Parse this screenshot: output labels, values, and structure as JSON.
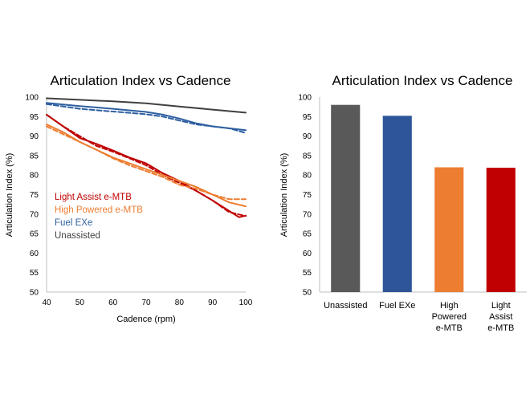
{
  "chart_data": [
    {
      "type": "line",
      "title": "Articulation Index vs Cadence",
      "xlabel": "Cadence (rpm)",
      "ylabel": "Articulation Index (%)",
      "xlim": [
        40,
        100
      ],
      "ylim": [
        50,
        100
      ],
      "xticks": [
        "40",
        "50",
        "60",
        "70",
        "80",
        "90",
        "100"
      ],
      "yticks": [
        "50",
        "55",
        "60",
        "65",
        "70",
        "75",
        "80",
        "85",
        "90",
        "95",
        "100"
      ],
      "grid": false,
      "legend_position": "middle-left",
      "series": [
        {
          "name": "Light Assist e-MTB",
          "color": "#c00000",
          "style": "solid",
          "x": [
            40,
            45,
            50,
            55,
            60,
            65,
            70,
            75,
            80,
            85,
            90,
            95,
            98,
            100
          ],
          "y": [
            95.5,
            92.5,
            89.5,
            88,
            86.3,
            84.5,
            83,
            80.5,
            78.5,
            76,
            73.5,
            70.8,
            69.2,
            69.6
          ]
        },
        {
          "name": "Light Assist e-MTB (dashed)",
          "color": "#c00000",
          "style": "dashed",
          "x": [
            40,
            45,
            50,
            55,
            60,
            65,
            70,
            75,
            80,
            85,
            90,
            95,
            100
          ],
          "y": [
            95.5,
            92.5,
            90,
            87.5,
            86,
            84.3,
            82.5,
            80,
            78,
            76,
            73.5,
            70.5,
            69.5
          ]
        },
        {
          "name": "High Powered e-MTB",
          "color": "#ed7d31",
          "style": "solid",
          "x": [
            40,
            45,
            50,
            55,
            60,
            65,
            70,
            75,
            80,
            85,
            90,
            95,
            100
          ],
          "y": [
            93,
            91,
            88.5,
            86.5,
            84.5,
            83,
            81.5,
            80,
            78.5,
            77,
            75,
            73,
            72
          ]
        },
        {
          "name": "High Powered e-MTB (dashed)",
          "color": "#ed7d31",
          "style": "dashed",
          "x": [
            40,
            45,
            50,
            55,
            60,
            65,
            70,
            75,
            80,
            85,
            90,
            95,
            100
          ],
          "y": [
            92.5,
            90.5,
            88.5,
            86.5,
            84.3,
            82.5,
            81,
            79.5,
            77.5,
            76.5,
            75,
            73.8,
            73.8
          ]
        },
        {
          "name": "Fuel EXe",
          "color": "#2e5fa1",
          "style": "solid",
          "x": [
            40,
            50,
            60,
            70,
            75,
            80,
            85,
            90,
            95,
            100
          ],
          "y": [
            98.5,
            97.7,
            97,
            96.2,
            95.5,
            94.5,
            93.3,
            92.5,
            92,
            91.5
          ]
        },
        {
          "name": "Fuel EXe (dashed)",
          "color": "#2e5fa1",
          "style": "dashed",
          "x": [
            40,
            50,
            60,
            70,
            75,
            80,
            85,
            90,
            95,
            100
          ],
          "y": [
            98.2,
            97,
            96.3,
            95.6,
            95,
            94,
            93,
            92.5,
            92,
            90.8
          ]
        },
        {
          "name": "Unassisted",
          "color": "#404040",
          "style": "solid",
          "x": [
            40,
            50,
            60,
            70,
            80,
            90,
            100
          ],
          "y": [
            99.7,
            99.3,
            98.9,
            98.4,
            97.6,
            96.8,
            96
          ]
        }
      ],
      "legend": [
        {
          "label": "Light Assist e-MTB",
          "color": "#c00000"
        },
        {
          "label": "High Powered e-MTB",
          "color": "#ed7d31"
        },
        {
          "label": "Fuel EXe",
          "color": "#2e5fa1"
        },
        {
          "label": "Unassisted",
          "color": "#404040"
        }
      ]
    },
    {
      "type": "bar",
      "title": "Articulation Index vs Cadence",
      "xlabel": "",
      "ylabel": "Articulation Index (%)",
      "ylim": [
        50,
        100
      ],
      "yticks": [
        "50",
        "55",
        "60",
        "65",
        "70",
        "75",
        "80",
        "85",
        "90",
        "95",
        "100"
      ],
      "grid": false,
      "categories": [
        [
          "Unassisted"
        ],
        [
          "Fuel EXe"
        ],
        [
          "High",
          "Powered",
          "e-MTB"
        ],
        [
          "Light",
          "Assist",
          "e-MTB"
        ]
      ],
      "values": [
        98,
        95.2,
        82,
        81.9
      ],
      "colors": [
        "#595959",
        "#2e5597",
        "#ed7d31",
        "#c00000"
      ]
    }
  ]
}
